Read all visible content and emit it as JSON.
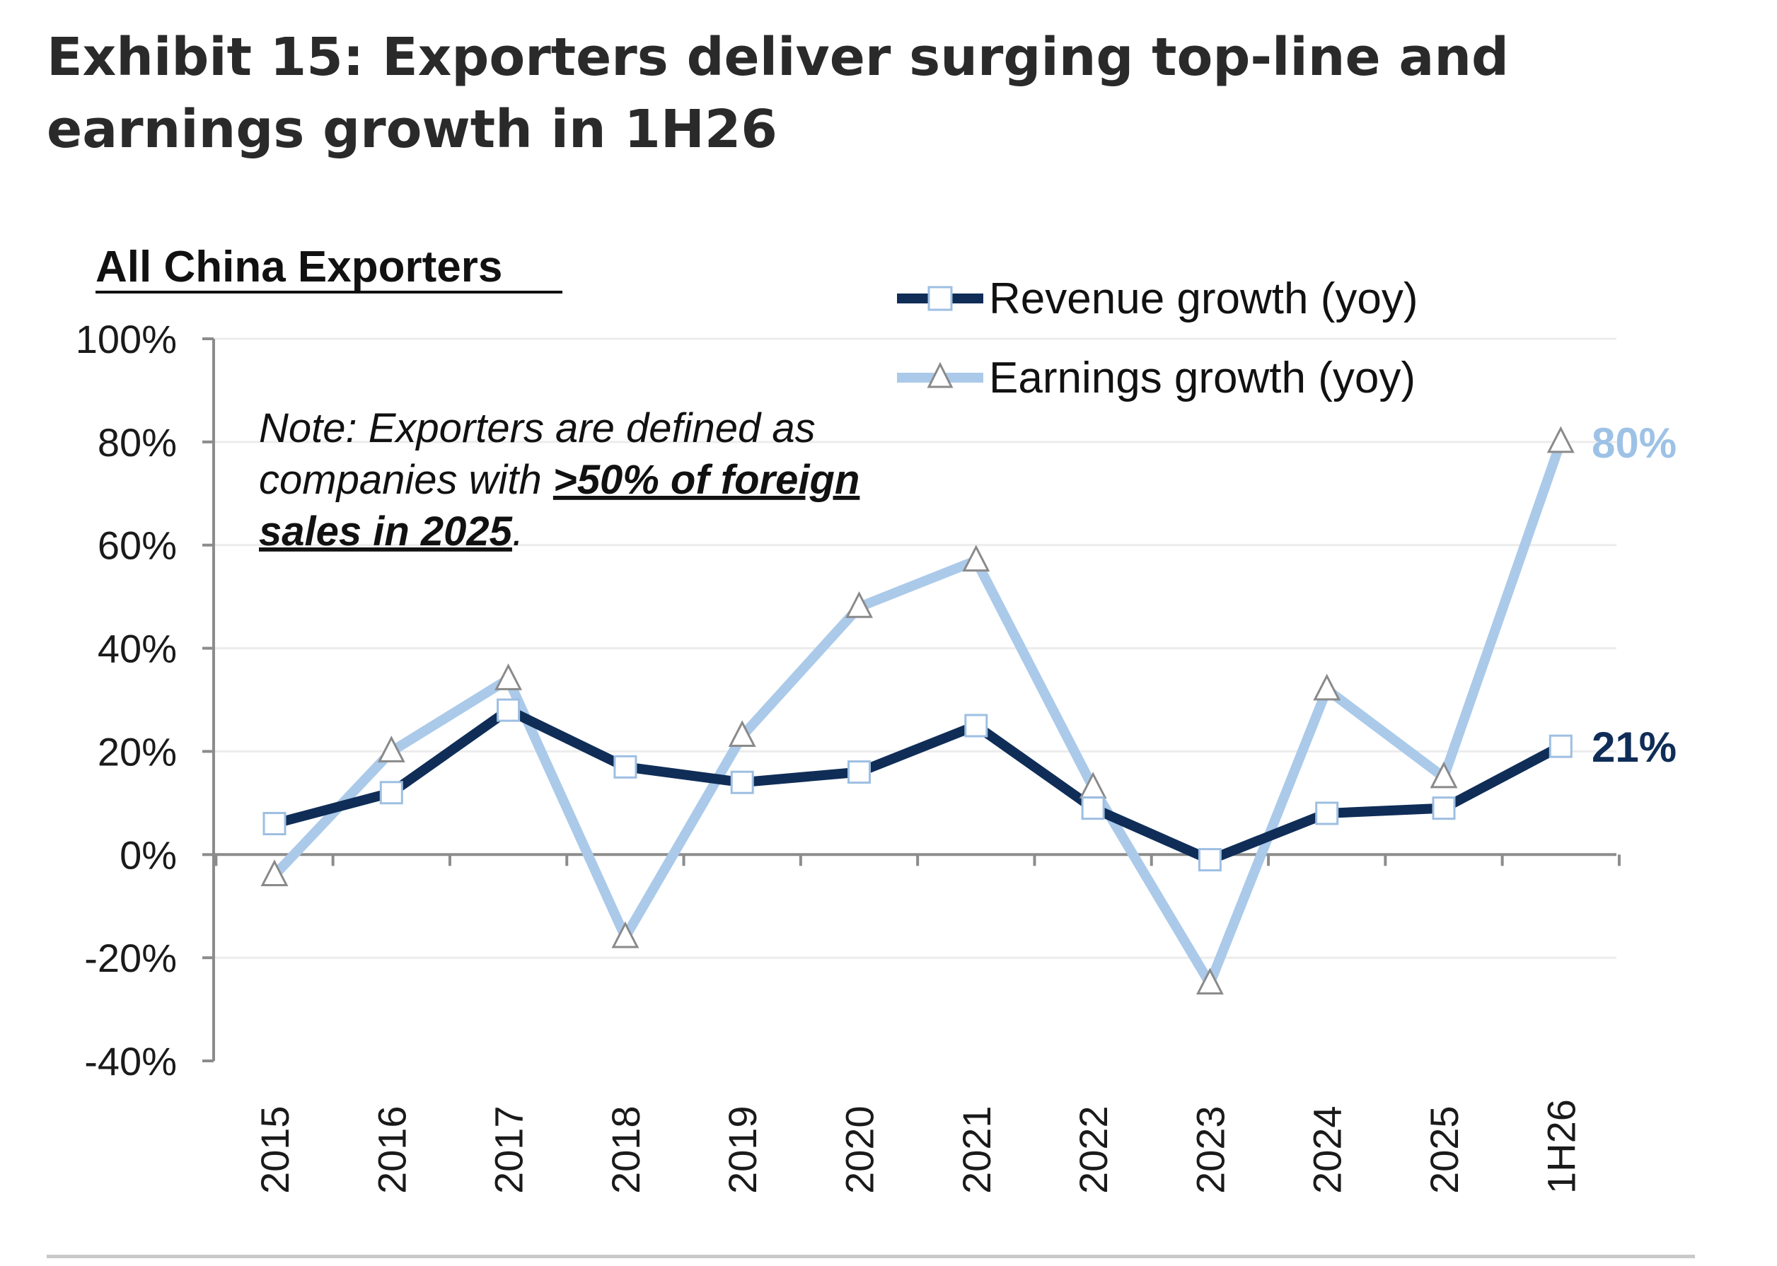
{
  "title": "Exhibit 15: Exporters deliver surging top-line and earnings growth in 1H26",
  "chart_data": {
    "type": "line",
    "subtitle": "All China Exporters",
    "categories": [
      "2015",
      "2016",
      "2017",
      "2018",
      "2019",
      "2020",
      "2021",
      "2022",
      "2023",
      "2024",
      "2025",
      "1H26"
    ],
    "series": [
      {
        "name": "Revenue growth (yoy)",
        "color": "#0f2d57",
        "marker": "square",
        "values": [
          6,
          12,
          28,
          17,
          14,
          16,
          25,
          9,
          -1,
          8,
          9,
          21
        ],
        "end_label": "21%"
      },
      {
        "name": "Earnings growth (yoy)",
        "color": "#abcaea",
        "marker": "triangle",
        "values": [
          -4,
          20,
          34,
          -16,
          23,
          48,
          57,
          13,
          -25,
          32,
          15,
          80
        ],
        "end_label": "80%"
      }
    ],
    "ylim": [
      -40,
      100
    ],
    "yticks": [
      "-40%",
      "-20%",
      "0%",
      "20%",
      "40%",
      "60%",
      "80%",
      "100%"
    ],
    "ytick_values": [
      -40,
      -20,
      0,
      20,
      40,
      60,
      80,
      100
    ],
    "grid": true,
    "legend_position": "top-right",
    "xlabel": "",
    "ylabel": "",
    "note": {
      "prefix": "Note: Exporters are defined as companies with ",
      "line1": "Note: Exporters are defined as",
      "line2_plain": "companies with ",
      "line2_bold": ">50% of foreign",
      "line3_bold": "sales in 2025",
      "line3_tail": "."
    }
  }
}
